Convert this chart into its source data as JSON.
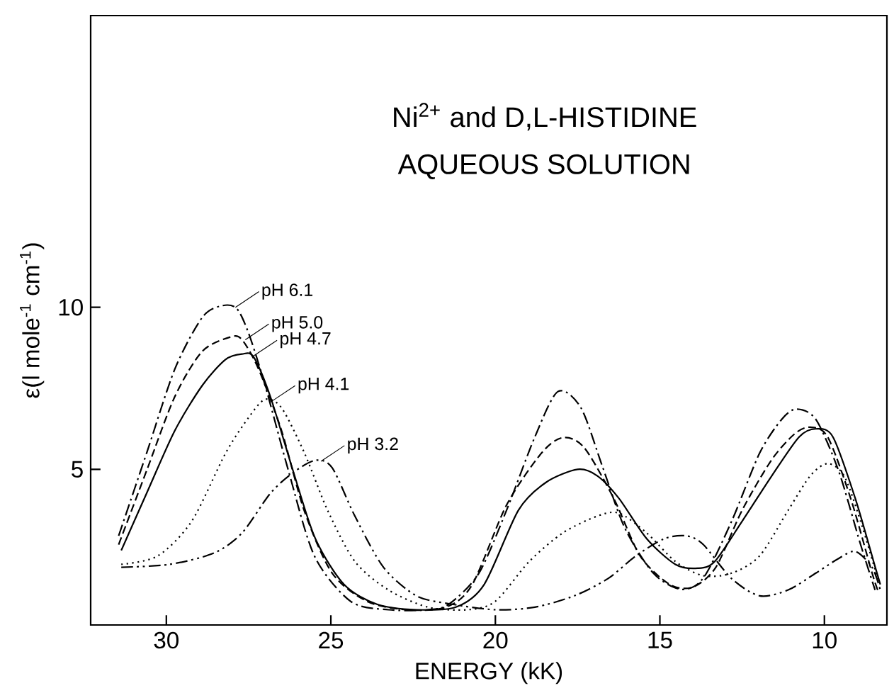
{
  "chart_data": {
    "type": "line",
    "title": "Ni$^{2+}$ and D,L-HISTIDINE",
    "subtitle": "AQUEOUS SOLUTION",
    "xlabel": "ENERGY (kK)",
    "ylabel": "ε(l mole$^{-1}$ cm$^{-1}$)",
    "xlim": [
      32.3,
      8.1
    ],
    "ylim": [
      0.2,
      19
    ],
    "xticks": [
      30,
      25,
      20,
      15,
      10
    ],
    "yticks": [
      5,
      10
    ],
    "grid": false,
    "series": [
      {
        "color": "#000000",
        "line_style": "dashdot",
        "x": [
          31.45,
          30.6,
          29.74,
          28.9,
          28.3,
          27.86,
          27.5,
          27.0,
          26.3,
          25.5,
          24.4,
          23.25,
          22.05,
          21.4,
          20.5,
          19.66,
          18.8,
          18.1,
          17.4,
          16.75,
          16.07,
          15.2,
          14.36,
          13.68,
          12.82,
          11.97,
          11.3,
          10.85,
          10.26,
          9.57,
          8.9,
          8.46
        ],
        "values": [
          2.95,
          5.5,
          8.1,
          9.7,
          10.05,
          9.96,
          9.2,
          7.6,
          5.0,
          2.33,
          0.93,
          0.67,
          0.67,
          0.85,
          1.8,
          3.74,
          6.0,
          7.4,
          6.9,
          5.1,
          3.2,
          1.8,
          1.3,
          1.65,
          3.4,
          5.5,
          6.54,
          6.86,
          6.54,
          4.96,
          2.68,
          1.28
        ]
      },
      {
        "color": "#000000",
        "line_style": "dashed",
        "x": [
          31.45,
          30.6,
          29.74,
          28.9,
          28.03,
          27.7,
          27.2,
          26.5,
          25.8,
          24.96,
          23.9,
          22.7,
          21.5,
          20.7,
          19.66,
          18.6,
          17.95,
          17.3,
          16.4,
          15.6,
          14.7,
          14.0,
          13.3,
          12.5,
          11.6,
          10.9,
          10.43,
          9.9,
          9.2,
          8.55,
          8.38
        ],
        "values": [
          2.68,
          4.96,
          7.25,
          8.65,
          9.09,
          9.0,
          8.1,
          6.2,
          3.7,
          1.8,
          0.93,
          0.67,
          0.75,
          1.45,
          3.9,
          5.5,
          5.98,
          5.67,
          4.1,
          2.33,
          1.45,
          1.37,
          1.98,
          3.74,
          5.3,
          6.1,
          6.3,
          6.0,
          4.1,
          1.8,
          1.28
        ]
      },
      {
        "color": "#000000",
        "line_style": "solid",
        "x": [
          31.37,
          30.6,
          29.74,
          28.9,
          28.2,
          27.7,
          27.35,
          26.84,
          26.15,
          25.47,
          24.6,
          23.6,
          22.4,
          21.2,
          20.34,
          19.3,
          18.46,
          17.5,
          16.9,
          16.24,
          15.4,
          14.53,
          13.85,
          13.33,
          12.5,
          11.6,
          10.77,
          10.26,
          9.74,
          9.06,
          8.46,
          8.3
        ],
        "values": [
          2.5,
          4.26,
          6.2,
          7.6,
          8.39,
          8.56,
          8.47,
          7.25,
          4.96,
          2.86,
          1.45,
          0.84,
          0.67,
          0.75,
          1.45,
          3.74,
          4.6,
          5.0,
          4.8,
          4.1,
          2.86,
          2.07,
          1.95,
          2.16,
          3.4,
          4.8,
          6.0,
          6.25,
          6.0,
          4.1,
          2.0,
          1.45
        ]
      },
      {
        "color": "#000000",
        "line_style": "dotted",
        "x": [
          31.37,
          30.26,
          29.23,
          28.2,
          27.5,
          27.0,
          26.5,
          25.8,
          25.1,
          24.27,
          23.25,
          22.05,
          20.85,
          20.0,
          18.97,
          17.95,
          16.9,
          16.24,
          15.4,
          14.53,
          13.68,
          12.82,
          11.97,
          11.1,
          10.43,
          9.9,
          9.4,
          8.9,
          8.38
        ],
        "values": [
          2.07,
          2.33,
          3.4,
          5.5,
          6.6,
          7.16,
          6.9,
          5.5,
          3.74,
          2.16,
          1.28,
          0.75,
          0.67,
          0.93,
          2.16,
          3.04,
          3.56,
          3.65,
          3.04,
          2.16,
          1.72,
          1.8,
          2.33,
          3.74,
          4.8,
          5.18,
          4.8,
          3.4,
          1.63
        ]
      },
      {
        "color": "#000000",
        "line_style": "dashdotdot",
        "x": [
          31.37,
          29.9,
          28.55,
          27.7,
          26.84,
          26.15,
          25.47,
          24.96,
          24.27,
          23.4,
          22.4,
          21.37,
          20.0,
          18.8,
          17.6,
          16.58,
          15.73,
          14.87,
          14.2,
          13.68,
          12.82,
          11.97,
          11.1,
          10.26,
          9.57,
          9.06,
          8.55,
          8.3
        ],
        "values": [
          1.98,
          2.07,
          2.42,
          3.04,
          4.26,
          4.9,
          5.28,
          5.05,
          3.56,
          1.98,
          1.1,
          0.85,
          0.67,
          0.75,
          1.1,
          1.63,
          2.33,
          2.86,
          2.95,
          2.68,
          1.63,
          1.1,
          1.28,
          1.8,
          2.25,
          2.47,
          1.98,
          1.28
        ]
      }
    ],
    "annotations": [
      {
        "text": "pH 6.1",
        "x": 27.9,
        "y": 10.0
      },
      {
        "text": "pH 5.0",
        "x": 27.6,
        "y": 9.0
      },
      {
        "text": "pH 4.7",
        "x": 27.35,
        "y": 8.5
      },
      {
        "text": "pH 4.1",
        "x": 26.8,
        "y": 7.1
      },
      {
        "text": "pH 3.2",
        "x": 25.3,
        "y": 5.25
      }
    ]
  }
}
